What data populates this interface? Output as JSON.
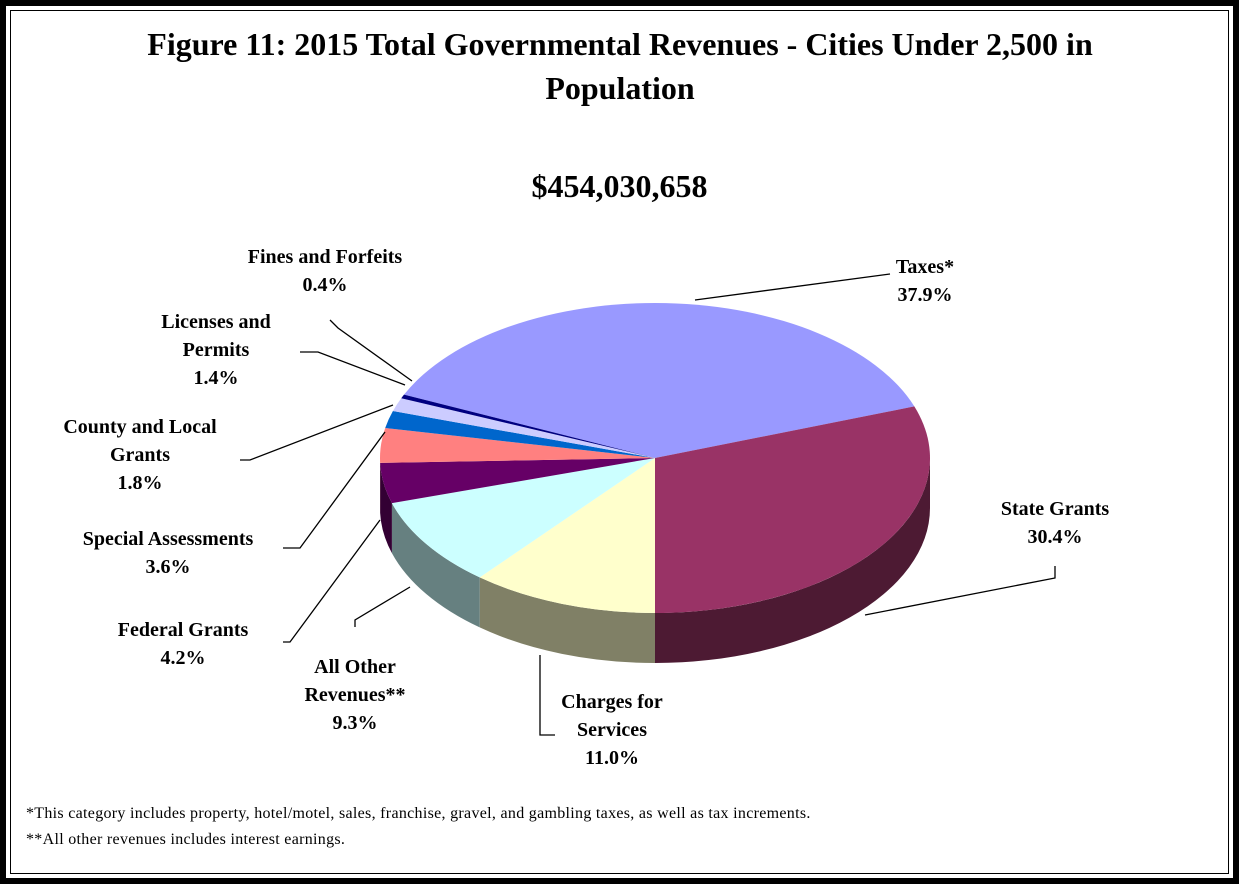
{
  "chart_data": {
    "type": "pie",
    "title": "Figure 11:  2015 Total Governmental Revenues - Cities Under 2,500 in Population",
    "subtitle": "$454,030,658",
    "categories": [
      "Taxes*",
      "State Grants",
      "Charges for Services",
      "All Other Revenues**",
      "Federal Grants",
      "Special Assessments",
      "County and Local Grants",
      "Licenses and Permits",
      "Fines and Forfeits"
    ],
    "values": [
      37.9,
      30.4,
      11.0,
      9.3,
      4.2,
      3.6,
      1.8,
      1.4,
      0.4
    ],
    "value_labels": [
      "37.9%",
      "30.4%",
      "11.0%",
      "9.3%",
      "4.2%",
      "3.6%",
      "1.8%",
      "1.4%",
      "0.4%"
    ],
    "colors": [
      "#9999ff",
      "#993366",
      "#ffffcc",
      "#ccffff",
      "#660066",
      "#ff8080",
      "#0066cc",
      "#ccccff",
      "#000080"
    ],
    "footnotes": [
      "*This category includes property, hotel/motel, sales, franchise, gravel, and gambling taxes, as well as tax increments.",
      "**All other revenues includes interest earnings."
    ]
  }
}
